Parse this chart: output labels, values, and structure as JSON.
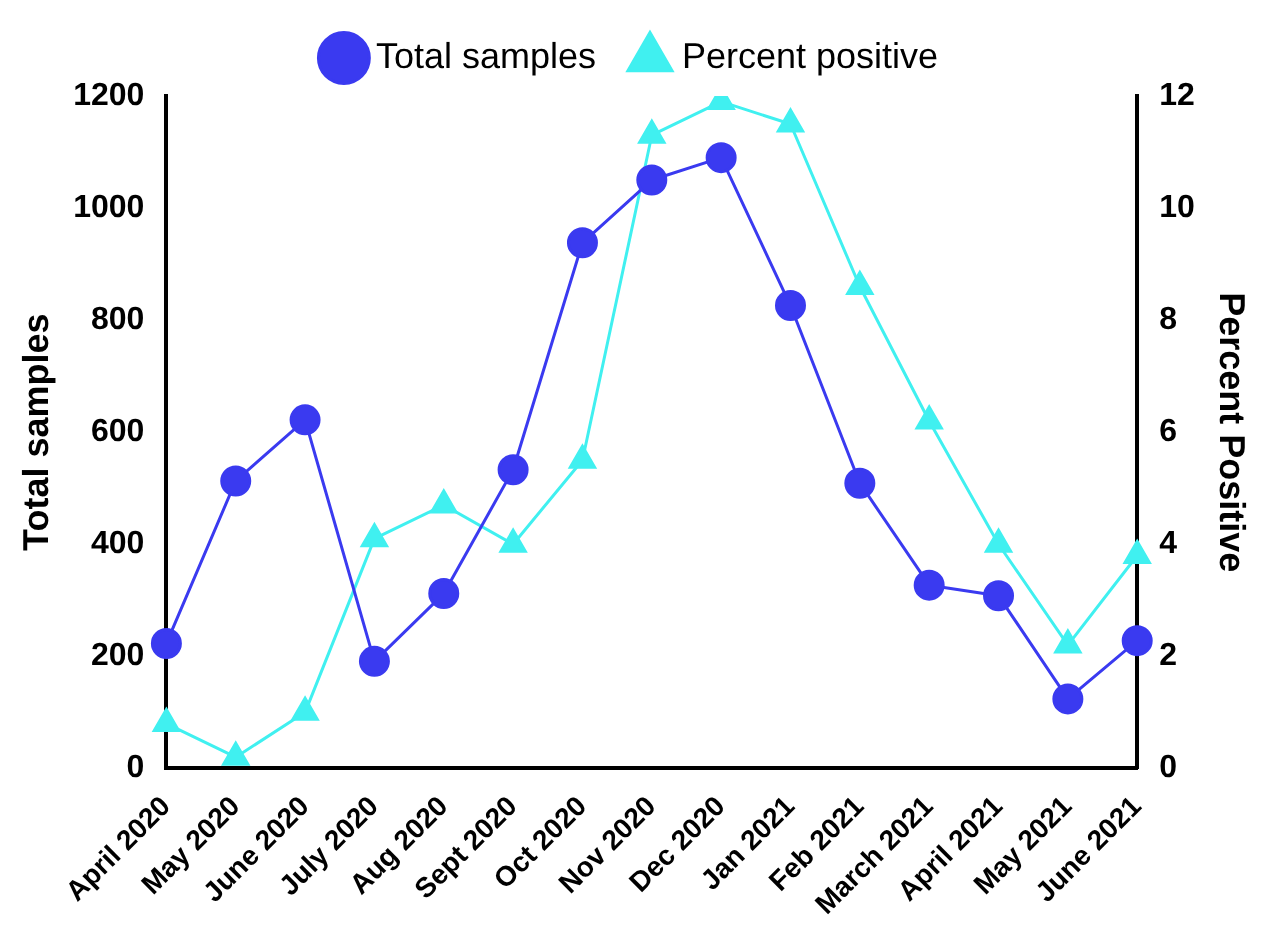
{
  "chart_data": {
    "type": "line",
    "ylabel": "Total samples",
    "y2label": "Percent Positive",
    "categories": [
      "April 2020",
      "May 2020",
      "June 2020",
      "July 2020",
      "Aug 2020",
      "Sept 2020",
      "Oct 2020",
      "Nov 2020",
      "Dec 2020",
      "Jan 2021",
      "Feb 2021",
      "March 2021",
      "April 2021",
      "May 2021",
      "June 2021"
    ],
    "series": [
      {
        "name": "Total samples",
        "color": "#3a3af0",
        "marker": "circle",
        "values": [
          223,
          513,
          622,
          191,
          312,
          533,
          938,
          1050,
          1090,
          826,
          509,
          327,
          308,
          124,
          228
        ]
      },
      {
        "name": "Percent positive",
        "color": "#40f0f0",
        "marker": "triangle",
        "axis": "y2",
        "values": [
          0.8,
          0.2,
          1.0,
          4.1,
          4.7,
          4.0,
          5.5,
          11.3,
          11.9,
          11.5,
          8.6,
          6.2,
          4.0,
          2.2,
          3.8
        ]
      }
    ],
    "ylim": [
      0,
      1200
    ],
    "yticks": [
      0,
      200,
      400,
      600,
      800,
      1000,
      1200
    ],
    "y2lim": [
      0,
      12
    ],
    "y2ticks": [
      0,
      2,
      4,
      6,
      8,
      10,
      12
    ],
    "legend": "top",
    "grid": false
  }
}
